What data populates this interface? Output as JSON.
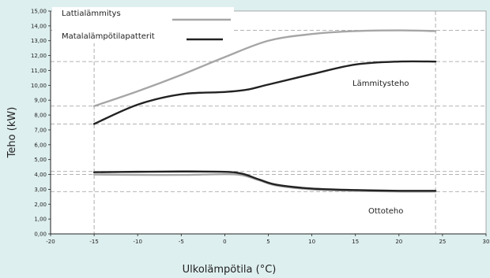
{
  "chart_data": {
    "type": "line",
    "title": "",
    "xlabel": "Ulkolämpötila (°C)",
    "ylabel": "Teho (kW)",
    "xlim": [
      -20,
      30
    ],
    "ylim": [
      0,
      15
    ],
    "x_ticks": [
      "-20",
      "-15",
      "-10",
      "-5",
      "0",
      "5",
      "10",
      "15",
      "20",
      "25",
      "30"
    ],
    "y_ticks": [
      "0,00",
      "1,00",
      "2,00",
      "3,00",
      "4,00",
      "5,00",
      "6,00",
      "7,00",
      "8,00",
      "9,00",
      "10,00",
      "11,00",
      "12,00",
      "13,00",
      "14,00",
      "15,00"
    ],
    "grid": false,
    "legend_position": "top-left",
    "series": [
      {
        "name": "Lattialämmitys",
        "color": "#a6a6a6",
        "points": [
          [
            -15,
            8.6
          ],
          [
            -10,
            9.6
          ],
          [
            -5,
            10.7
          ],
          [
            0,
            11.9
          ],
          [
            5,
            13.0
          ],
          [
            10,
            13.45
          ],
          [
            15,
            13.65
          ],
          [
            20,
            13.7
          ],
          [
            24.2,
            13.65
          ]
        ]
      },
      {
        "name": "Matalalämpötilapatterit",
        "color": "#222222",
        "points": [
          [
            -15,
            7.4
          ],
          [
            -10,
            8.7
          ],
          [
            -5,
            9.4
          ],
          [
            0,
            9.55
          ],
          [
            2.5,
            9.7
          ],
          [
            5,
            10.05
          ],
          [
            10,
            10.75
          ],
          [
            15,
            11.4
          ],
          [
            20,
            11.6
          ],
          [
            24.2,
            11.6
          ]
        ]
      },
      {
        "name": "",
        "color": "#a6a6a6",
        "points": [
          [
            -15,
            4.0
          ],
          [
            -10,
            3.97
          ],
          [
            -5,
            3.97
          ],
          [
            0,
            4.02
          ],
          [
            2,
            3.95
          ],
          [
            4,
            3.6
          ],
          [
            6,
            3.25
          ],
          [
            10,
            3.0
          ],
          [
            15,
            2.9
          ],
          [
            20,
            2.85
          ],
          [
            24.2,
            2.85
          ]
        ]
      },
      {
        "name": "",
        "color": "#222222",
        "points": [
          [
            -15,
            4.15
          ],
          [
            -10,
            4.18
          ],
          [
            -5,
            4.2
          ],
          [
            0,
            4.18
          ],
          [
            2,
            4.05
          ],
          [
            4,
            3.65
          ],
          [
            6,
            3.3
          ],
          [
            10,
            3.05
          ],
          [
            15,
            2.95
          ],
          [
            20,
            2.9
          ],
          [
            24.2,
            2.9
          ]
        ]
      }
    ],
    "reference_lines": {
      "vertical": [
        -15,
        24.2
      ],
      "horizontal": [
        13.7,
        11.6,
        8.6,
        7.4,
        4.2,
        4.0,
        2.85
      ]
    },
    "annotations": [
      {
        "text": "Lämmitysteho",
        "x": 18,
        "y": 9.6
      },
      {
        "text": "Ottoteho",
        "x": 18.5,
        "y": 1.7
      }
    ]
  }
}
